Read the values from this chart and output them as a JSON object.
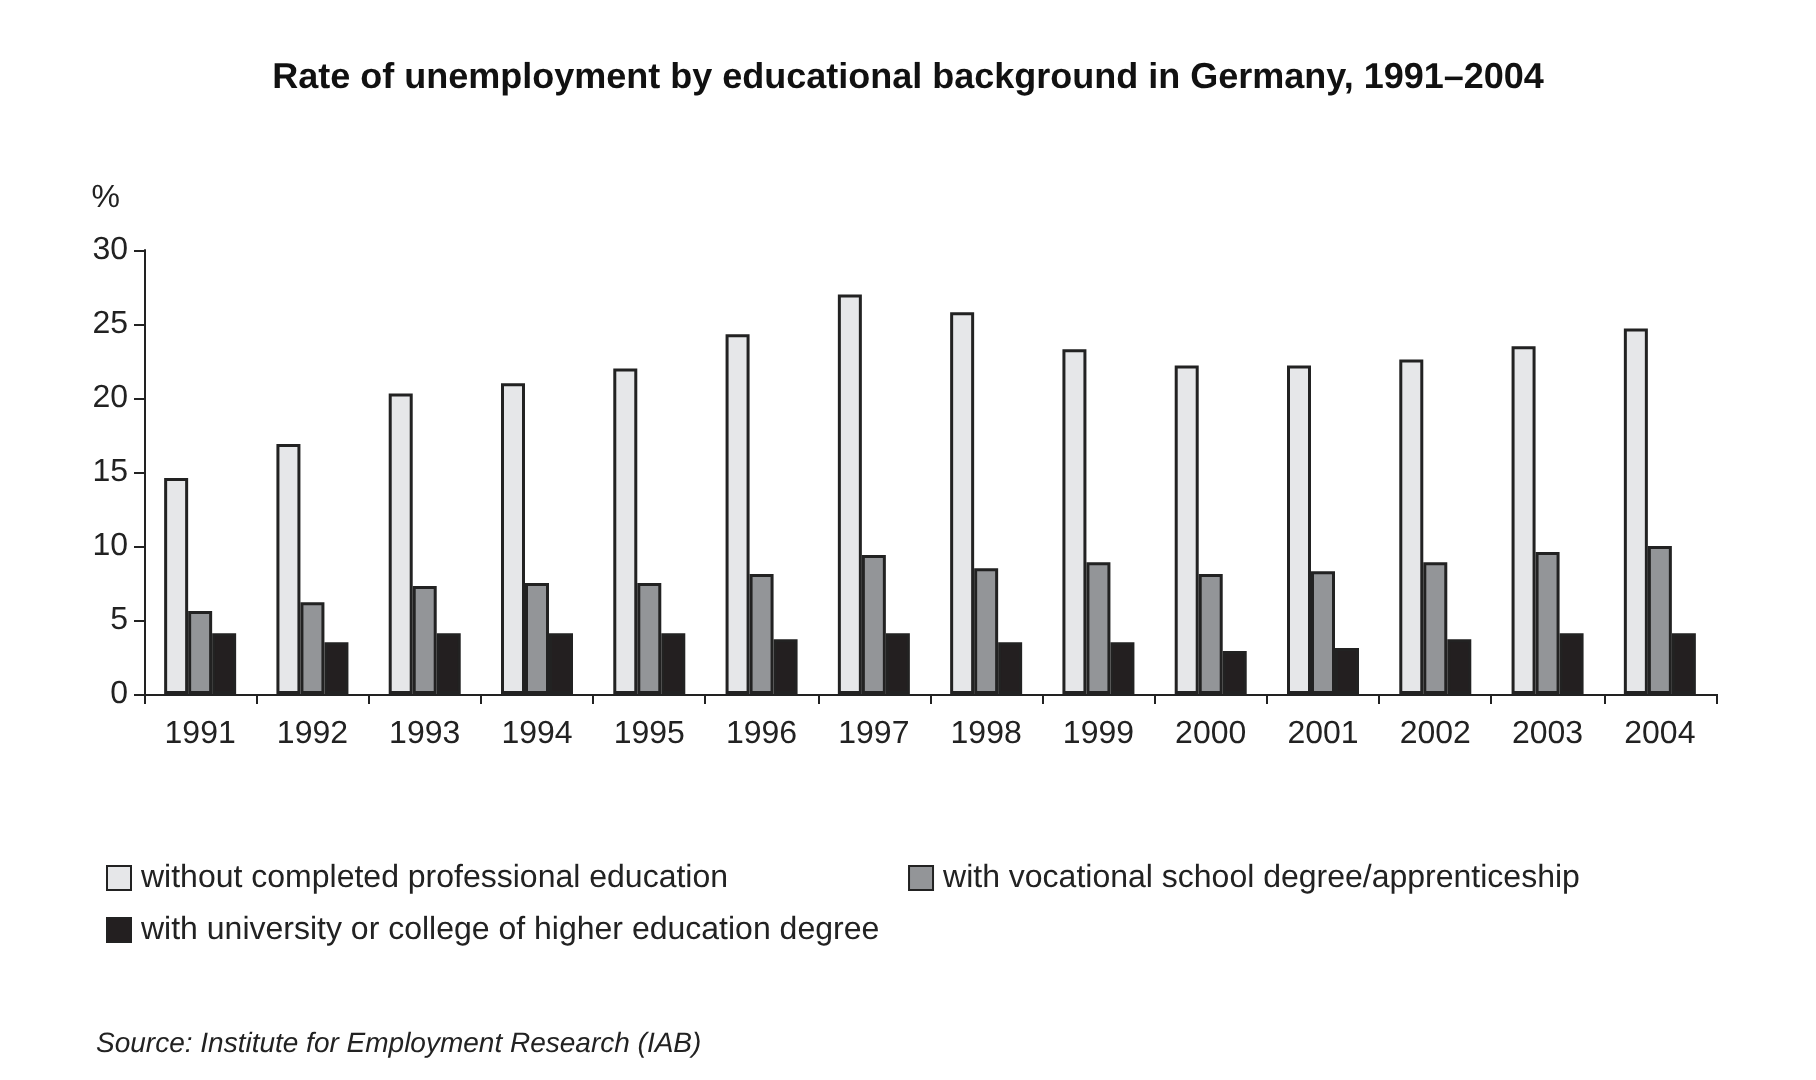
{
  "chart_data": {
    "type": "bar",
    "title": "Rate of unemployment by educational background in Germany, 1991–2004",
    "ylabel": "%",
    "categories": [
      "1991",
      "1992",
      "1993",
      "1994",
      "1995",
      "1996",
      "1997",
      "1998",
      "1999",
      "2000",
      "2001",
      "2002",
      "2003",
      "2004"
    ],
    "series": [
      {
        "name": "without completed professional education",
        "color": "#e6e7e9",
        "values": [
          14.6,
          16.9,
          20.3,
          21.0,
          22.0,
          24.3,
          27.0,
          25.8,
          23.3,
          22.2,
          22.2,
          22.6,
          23.5,
          24.7
        ]
      },
      {
        "name": "with vocational school degree/apprenticeship",
        "color": "#939598",
        "values": [
          5.6,
          6.2,
          7.3,
          7.5,
          7.5,
          8.1,
          9.4,
          8.5,
          8.9,
          8.1,
          8.3,
          8.9,
          9.6,
          10.0
        ]
      },
      {
        "name": "with university or college of higher education degree",
        "color": "#231f20",
        "values": [
          4.1,
          3.5,
          4.1,
          4.1,
          4.1,
          3.7,
          4.1,
          3.5,
          3.5,
          2.9,
          3.1,
          3.7,
          4.1,
          4.1
        ]
      }
    ],
    "ylim": [
      0,
      30
    ],
    "yticks": [
      0,
      5,
      10,
      15,
      20,
      25,
      30
    ],
    "grid": false,
    "legend": "bottom",
    "annotations": [
      "Source: Institute for Employment Research (IAB)"
    ]
  }
}
